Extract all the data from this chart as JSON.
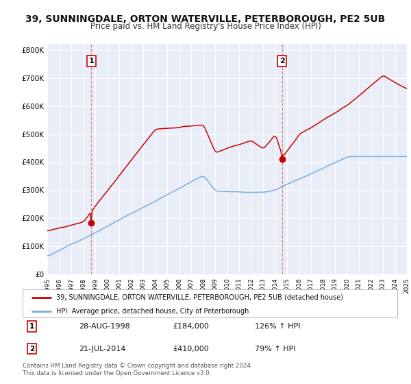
{
  "title": "39, SUNNINGDALE, ORTON WATERVILLE, PETERBOROUGH, PE2 5UB",
  "subtitle": "Price paid vs. HM Land Registry's House Price Index (HPI)",
  "ylim": [
    0,
    820000
  ],
  "yticks": [
    0,
    100000,
    200000,
    300000,
    400000,
    500000,
    600000,
    700000,
    800000
  ],
  "ytick_labels": [
    "£0",
    "£100K",
    "£200K",
    "£300K",
    "£400K",
    "£500K",
    "£600K",
    "£700K",
    "£800K"
  ],
  "bg_color": "#e8edf8",
  "red_line_label": "39, SUNNINGDALE, ORTON WATERVILLE, PETERBOROUGH, PE2 5UB (detached house)",
  "blue_line_label": "HPI: Average price, detached house, City of Peterborough",
  "marker1_date_str": "28-AUG-1998",
  "marker1_price": 184000,
  "marker1_hpi_pct": "126%",
  "marker2_date_str": "21-JUL-2014",
  "marker2_price": 410000,
  "marker2_hpi_pct": "79%",
  "footer": "Contains HM Land Registry data © Crown copyright and database right 2024.\nThis data is licensed under the Open Government Licence v3.0.",
  "title_fontsize": 10,
  "subtitle_fontsize": 8.5,
  "red_color": "#cc0000",
  "blue_color": "#7aacdc",
  "vline_color": "#dd8888"
}
